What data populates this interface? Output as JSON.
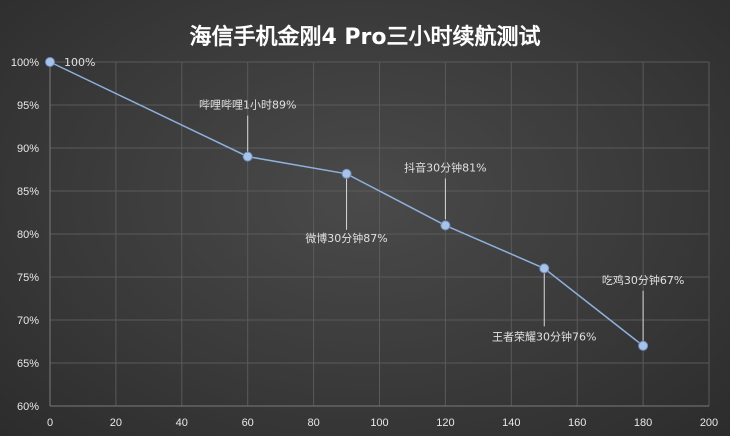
{
  "chart_data": {
    "type": "line",
    "title": "海信手机金刚4 Pro三小时续航测试",
    "xlabel": "",
    "ylabel": "",
    "xlim": [
      0,
      200
    ],
    "ylim": [
      60,
      100
    ],
    "x_ticks": [
      0,
      20,
      40,
      60,
      80,
      100,
      120,
      140,
      160,
      180,
      200
    ],
    "y_ticks": [
      "60%",
      "65%",
      "70%",
      "75%",
      "80%",
      "85%",
      "90%",
      "95%",
      "100%"
    ],
    "grid": true,
    "series": [
      {
        "x": [
          0,
          60,
          90,
          120,
          150,
          180
        ],
        "values": [
          100,
          89,
          87,
          81,
          76,
          67
        ]
      }
    ],
    "data_labels": [
      "100%",
      "哔哩哔哩1小时89%",
      "微博30分钟87%",
      "抖音30分钟81%",
      "王者荣耀30分钟76%",
      "吃鸡30分钟67%"
    ],
    "colors": {
      "line": "#8fb0dc",
      "point": "#a8c3e8"
    }
  }
}
